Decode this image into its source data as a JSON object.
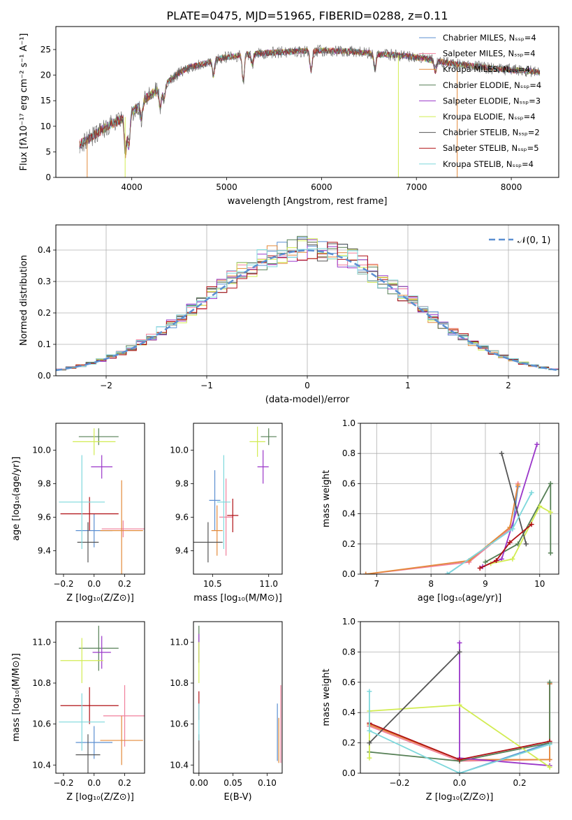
{
  "figure_title": "PLATE=0475, MJD=51965, FIBERID=0288, z=0.11",
  "colors": {
    "Chabrier MILES": "#5b8fd1",
    "Salpeter MILES": "#f07f9b",
    "Kroupa MILES": "#e38a3a",
    "Chabrier ELODIE": "#557f55",
    "Salpeter ELODIE": "#9a36c9",
    "Kroupa ELODIE": "#d2ec52",
    "Chabrier STELIB": "#555555",
    "Salpeter STELIB": "#b01015",
    "Kroupa STELIB": "#7ed8dc",
    "normal": "#5b8fd1"
  },
  "chart_data": [
    {
      "id": "spectrum",
      "type": "line",
      "xlabel": "wavelength [Angstrom, rest frame]",
      "ylabel": "Flux [fλ10⁻¹⁷ erg cm⁻² s⁻¹ A⁻¹]",
      "xlim": [
        3200,
        8500
      ],
      "ylim": [
        0,
        29.5
      ],
      "xticks": [
        "4000",
        "5000",
        "6000",
        "7000",
        "8000"
      ],
      "yticks": [
        "0",
        "5",
        "10",
        "15",
        "20",
        "25"
      ],
      "legend_position": "upper right",
      "legend": [
        "Chabrier MILES, N_SSP=4",
        "Salpeter MILES, N_SSP=4",
        "Kroupa MILES, N_SSP=4",
        "Chabrier ELODIE, N_SSP=4",
        "Salpeter ELODIE, N_SSP=3",
        "Kroupa ELODIE, N_SSP=4",
        "Chabrier STELIB, N_SSP=2",
        "Salpeter STELIB, N_SSP=5",
        "Kroupa STELIB, N_SSP=4"
      ],
      "continuum_x": [
        3450,
        3550,
        3700,
        3850,
        3950,
        4050,
        4150,
        4300,
        4400,
        4500,
        4600,
        4800,
        4900,
        5000,
        5200,
        5400,
        5600,
        5800,
        6000,
        6200,
        6400,
        6600,
        6800,
        7000,
        7200,
        7400,
        7600,
        7800,
        8000,
        8200,
        8300
      ],
      "continuum_y": [
        6.5,
        7.5,
        9.5,
        11,
        12,
        13.5,
        15.5,
        17.5,
        19,
        20.5,
        21.5,
        22.5,
        23.2,
        23.5,
        24,
        24.3,
        24.5,
        24.7,
        24.8,
        24.7,
        24.5,
        24.1,
        23.9,
        23.5,
        22.8,
        22.2,
        21.8,
        21.3,
        21,
        20.8,
        20.5
      ]
    },
    {
      "id": "residuals",
      "type": "histogram",
      "xlabel": "(data-model)/error",
      "ylabel": "Normed distribution",
      "xlim": [
        -2.5,
        2.5
      ],
      "ylim": [
        0,
        0.48
      ],
      "xticks": [
        "−2",
        "−1",
        "0",
        "1",
        "2"
      ],
      "yticks": [
        "0.0",
        "0.1",
        "0.2",
        "0.3",
        "0.4"
      ],
      "grid": true,
      "legend_position": "upper right",
      "legend": [
        "𝒩(0, 1)"
      ],
      "bin_width": 0.1,
      "n_histograms": 9
    },
    {
      "id": "age-vs-Z",
      "type": "scatter",
      "xlabel": "Z [log₁₀(Z/Z⊙)]",
      "ylabel": "age  [log₁₀(age/yr)]",
      "xlim": [
        -0.25,
        0.33
      ],
      "ylim": [
        9.26,
        10.16
      ],
      "xticks": [
        "−0.2",
        "0.0",
        "0.2"
      ],
      "yticks": [
        "9.4",
        "9.6",
        "9.8",
        "10.0"
      ],
      "points": [
        {
          "model": "Chabrier MILES",
          "x": 0.0,
          "xerr": 0.12,
          "y": 9.52,
          "yerr": 0.1
        },
        {
          "model": "Salpeter MILES",
          "x": 0.19,
          "xerr": 0.14,
          "y": 9.53,
          "yerr": 0.05
        },
        {
          "model": "Kroupa MILES",
          "x": 0.18,
          "xerr": 0.14,
          "y": 9.52,
          "yerr": 0.3
        },
        {
          "model": "Chabrier ELODIE",
          "x": 0.03,
          "xerr": 0.13,
          "y": 10.08,
          "yerr": 0.05
        },
        {
          "model": "Salpeter ELODIE",
          "x": 0.05,
          "xerr": 0.07,
          "y": 9.9,
          "yerr": 0.07
        },
        {
          "model": "Kroupa ELODIE",
          "x": 0.0,
          "xerr": 0.14,
          "y": 10.05,
          "yerr": 0.08
        },
        {
          "model": "Chabrier STELIB",
          "x": -0.04,
          "xerr": 0.07,
          "y": 9.45,
          "yerr": 0.12
        },
        {
          "model": "Salpeter STELIB",
          "x": -0.03,
          "xerr": 0.19,
          "y": 9.62,
          "yerr": 0.1
        },
        {
          "model": "Kroupa STELIB",
          "x": -0.08,
          "xerr": 0.15,
          "y": 9.69,
          "yerr": 0.28
        }
      ]
    },
    {
      "id": "age-vs-mass",
      "type": "scatter",
      "xlabel": "mass [log₁₀(M/M⊙)]",
      "ylabel": "",
      "xlim": [
        10.33,
        11.12
      ],
      "ylim": [
        9.26,
        10.16
      ],
      "xticks": [
        "10.5",
        "11.0"
      ],
      "yticks": [
        "9.4",
        "9.6",
        "9.8",
        "10.0"
      ],
      "points": [
        {
          "model": "Chabrier MILES",
          "x": 10.52,
          "xerr": 0.05,
          "y": 9.7,
          "yerr": 0.18
        },
        {
          "model": "Salpeter MILES",
          "x": 10.62,
          "xerr": 0.06,
          "y": 9.6,
          "yerr": 0.23
        },
        {
          "model": "Kroupa MILES",
          "x": 10.54,
          "xerr": 0.05,
          "y": 9.52,
          "yerr": 0.15
        },
        {
          "model": "Chabrier ELODIE",
          "x": 11.0,
          "xerr": 0.07,
          "y": 10.08,
          "yerr": 0.05
        },
        {
          "model": "Salpeter ELODIE",
          "x": 10.95,
          "xerr": 0.05,
          "y": 9.9,
          "yerr": 0.1
        },
        {
          "model": "Kroupa ELODIE",
          "x": 10.9,
          "xerr": 0.07,
          "y": 10.05,
          "yerr": 0.09
        },
        {
          "model": "Chabrier STELIB",
          "x": 10.46,
          "xerr": 0.13,
          "y": 9.45,
          "yerr": 0.12
        },
        {
          "model": "Salpeter STELIB",
          "x": 10.68,
          "xerr": 0.05,
          "y": 9.61,
          "yerr": 0.1
        },
        {
          "model": "Kroupa STELIB",
          "x": 10.6,
          "xerr": 0.06,
          "y": 9.69,
          "yerr": 0.28
        }
      ]
    },
    {
      "id": "mass-weight-vs-age",
      "type": "line",
      "xlabel": "age  [log₁₀(age/yr)]",
      "ylabel": "mass weight",
      "xlim": [
        6.7,
        10.35
      ],
      "ylim": [
        0,
        1.0
      ],
      "xticks": [
        "7",
        "8",
        "9",
        "10"
      ],
      "yticks": [
        "0.0",
        "0.2",
        "0.4",
        "0.6",
        "0.8",
        "1.0"
      ],
      "grid": true,
      "series": [
        {
          "model": "Chabrier MILES",
          "x": [
            8.3,
            9.5,
            9.6
          ],
          "y": [
            0.0,
            0.3,
            0.58
          ]
        },
        {
          "model": "Salpeter MILES",
          "x": [
            6.8,
            8.7,
            9.45,
            9.6
          ],
          "y": [
            0.0,
            0.08,
            0.3,
            0.6
          ]
        },
        {
          "model": "Kroupa MILES",
          "x": [
            6.8,
            8.7,
            9.45,
            9.6
          ],
          "y": [
            0.0,
            0.09,
            0.31,
            0.59
          ]
        },
        {
          "model": "Chabrier ELODIE",
          "x": [
            9.0,
            9.6,
            10.2,
            10.2
          ],
          "y": [
            0.08,
            0.2,
            0.6,
            0.14
          ]
        },
        {
          "model": "Salpeter ELODIE",
          "x": [
            8.95,
            9.3,
            9.95
          ],
          "y": [
            0.05,
            0.1,
            0.86
          ]
        },
        {
          "model": "Kroupa ELODIE",
          "x": [
            9.1,
            9.5,
            10.0,
            10.2
          ],
          "y": [
            0.07,
            0.1,
            0.45,
            0.41
          ]
        },
        {
          "model": "Chabrier STELIB",
          "x": [
            9.3,
            9.75
          ],
          "y": [
            0.8,
            0.2
          ]
        },
        {
          "model": "Salpeter STELIB",
          "x": [
            8.9,
            9.2,
            9.45,
            9.85
          ],
          "y": [
            0.04,
            0.09,
            0.21,
            0.33
          ]
        },
        {
          "model": "Kroupa STELIB",
          "x": [
            8.3,
            9.5,
            9.85
          ],
          "y": [
            0.0,
            0.3,
            0.54
          ]
        }
      ]
    },
    {
      "id": "mass-vs-Z",
      "type": "scatter",
      "xlabel": "Z [log₁₀(Z/Z⊙)]",
      "ylabel": "mass [log₁₀(M/M⊙)]",
      "xlim": [
        -0.25,
        0.33
      ],
      "ylim": [
        10.36,
        11.1
      ],
      "xticks": [
        "−0.2",
        "0.0",
        "0.2"
      ],
      "yticks": [
        "10.4",
        "10.6",
        "10.8",
        "11.0"
      ],
      "points": [
        {
          "model": "Chabrier MILES",
          "x": 0.0,
          "xerr": 0.12,
          "y": 10.51,
          "yerr": 0.08
        },
        {
          "model": "Salpeter MILES",
          "x": 0.2,
          "xerr": 0.14,
          "y": 10.64,
          "yerr": 0.15
        },
        {
          "model": "Kroupa MILES",
          "x": 0.18,
          "xerr": 0.14,
          "y": 10.52,
          "yerr": 0.12
        },
        {
          "model": "Chabrier ELODIE",
          "x": 0.03,
          "xerr": 0.13,
          "y": 10.97,
          "yerr": 0.11
        },
        {
          "model": "Salpeter ELODIE",
          "x": 0.05,
          "xerr": 0.06,
          "y": 10.95,
          "yerr": 0.08
        },
        {
          "model": "Kroupa ELODIE",
          "x": -0.08,
          "xerr": 0.14,
          "y": 10.91,
          "yerr": 0.11
        },
        {
          "model": "Chabrier STELIB",
          "x": -0.04,
          "xerr": 0.08,
          "y": 10.45,
          "yerr": 0.1
        },
        {
          "model": "Salpeter STELIB",
          "x": -0.03,
          "xerr": 0.19,
          "y": 10.69,
          "yerr": 0.09
        },
        {
          "model": "Kroupa STELIB",
          "x": -0.08,
          "xerr": 0.15,
          "y": 10.61,
          "yerr": 0.14
        }
      ]
    },
    {
      "id": "mass-vs-EBV",
      "type": "scatter",
      "xlabel": "E(B-V)",
      "ylabel": "",
      "xlim": [
        -0.008,
        0.122
      ],
      "ylim": [
        10.36,
        11.1
      ],
      "xticks": [
        "0.00",
        "0.05",
        "0.10"
      ],
      "yticks": [
        "10.4",
        "10.6",
        "10.8",
        "11.0"
      ],
      "points": [
        {
          "model": "Chabrier MILES",
          "x": 0.115,
          "y": 10.56,
          "yerr": 0.14
        },
        {
          "model": "Salpeter MILES",
          "x": 0.12,
          "y": 10.6,
          "yerr": 0.19
        },
        {
          "model": "Kroupa MILES",
          "x": 0.117,
          "y": 10.52,
          "yerr": 0.11
        },
        {
          "model": "Chabrier ELODIE",
          "x": 0.0,
          "y": 10.99,
          "yerr": 0.09
        },
        {
          "model": "Salpeter ELODIE",
          "x": 0.0,
          "y": 10.97,
          "yerr": 0.07
        },
        {
          "model": "Kroupa ELODIE",
          "x": 0.0,
          "y": 10.9,
          "yerr": 0.1
        },
        {
          "model": "Chabrier STELIB",
          "x": 0.0,
          "y": 10.45,
          "yerr": 0.1
        },
        {
          "model": "Salpeter STELIB",
          "x": 0.0,
          "y": 10.69,
          "yerr": 0.07
        },
        {
          "model": "Kroupa STELIB",
          "x": 0.0,
          "y": 10.61,
          "yerr": 0.09
        }
      ]
    },
    {
      "id": "mass-weight-vs-Z",
      "type": "line",
      "xlabel": "Z [log₁₀(Z/Z⊙)]",
      "ylabel": "mass weight",
      "xlim": [
        -0.33,
        0.33
      ],
      "ylim": [
        0,
        1.0
      ],
      "xticks": [
        "−0.2",
        "0.0",
        "0.2"
      ],
      "yticks": [
        "0.0",
        "0.2",
        "0.4",
        "0.6",
        "0.8",
        "1.0"
      ],
      "grid": true,
      "series": [
        {
          "model": "Chabrier MILES",
          "x": [
            0.0,
            0.3,
            0.3
          ],
          "y": [
            0.0,
            0.2,
            0.59
          ]
        },
        {
          "model": "Salpeter MILES",
          "x": [
            -0.3,
            0.0,
            0.3,
            0.3
          ],
          "y": [
            0.31,
            0.08,
            0.09,
            0.59
          ]
        },
        {
          "model": "Kroupa MILES",
          "x": [
            -0.3,
            0.0,
            0.3,
            0.3
          ],
          "y": [
            0.32,
            0.09,
            0.09,
            0.59
          ]
        },
        {
          "model": "Chabrier ELODIE",
          "x": [
            -0.3,
            0.0,
            0.3,
            0.3
          ],
          "y": [
            0.14,
            0.08,
            0.2,
            0.6
          ]
        },
        {
          "model": "Salpeter ELODIE",
          "x": [
            0.0,
            0.0,
            0.3
          ],
          "y": [
            0.86,
            0.1,
            0.05
          ]
        },
        {
          "model": "Kroupa ELODIE",
          "x": [
            -0.3,
            -0.3,
            0.0,
            0.3
          ],
          "y": [
            0.1,
            0.41,
            0.45,
            0.04
          ]
        },
        {
          "model": "Chabrier STELIB",
          "x": [
            -0.3,
            0.0
          ],
          "y": [
            0.2,
            0.8
          ]
        },
        {
          "model": "Salpeter STELIB",
          "x": [
            -0.3,
            0.0,
            0.3
          ],
          "y": [
            0.33,
            0.09,
            0.21
          ]
        },
        {
          "model": "Kroupa STELIB",
          "x": [
            -0.3,
            -0.3,
            0.0,
            0.3
          ],
          "y": [
            0.54,
            0.28,
            0.0,
            0.19
          ]
        }
      ]
    }
  ]
}
